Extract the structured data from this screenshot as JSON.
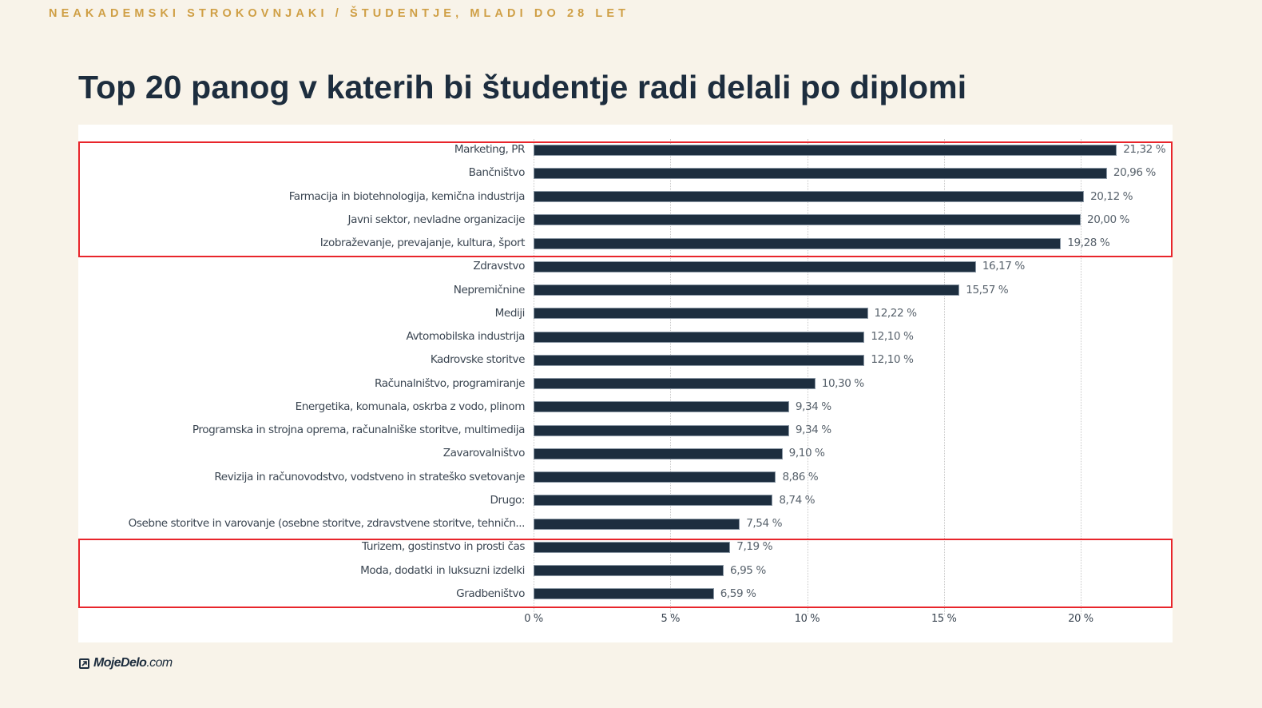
{
  "header": {
    "kicker": "NEAKADEMSKI STROKOVNJAKI / ŠTUDENTJE, MLADI DO 28 LET",
    "title": "Top 20 panog v katerih bi študentje radi delali po diplomi"
  },
  "footer": {
    "logo_bold": "MojeDelo",
    "logo_suffix": ".com",
    "logo_icon": "arrow-up-right-box-icon"
  },
  "colors": {
    "background": "#f8f3e9",
    "kicker": "#cf9f45",
    "title": "#1d2d3e",
    "bar": "#1d2e3f",
    "highlight_border": "#e8252b"
  },
  "chart_data": {
    "type": "bar",
    "orientation": "horizontal",
    "title": "Top 20 panog v katerih bi študentje radi delali po diplomi",
    "xlabel": "",
    "ylabel": "",
    "xlim": [
      0,
      23
    ],
    "x_ticks": [
      "0 %",
      "5 %",
      "10 %",
      "15 %",
      "20 %"
    ],
    "grid": true,
    "categories": [
      "Marketing, PR",
      "Bančništvo",
      "Farmacija in biotehnologija, kemična industrija",
      "Javni sektor, nevladne organizacije",
      "Izobraževanje, prevajanje, kultura, šport",
      "Zdravstvo",
      "Nepremičnine",
      "Mediji",
      "Avtomobilska industrija",
      "Kadrovske storitve",
      "Računalništvo, programiranje",
      "Energetika, komunala, oskrba z vodo, plinom",
      "Programska in strojna oprema, računalniške storitve, multimedija",
      "Zavarovalništvo",
      "Revizija in računovodstvo, vodstveno in strateško svetovanje",
      "Drugo:",
      "Osebne storitve in varovanje (osebne storitve, zdravstvene storitve, tehničn...",
      "Turizem, gostinstvo in prosti čas",
      "Moda, dodatki in luksuzni izdelki",
      "Gradbeništvo"
    ],
    "values": [
      21.32,
      20.96,
      20.12,
      20.0,
      19.28,
      16.17,
      15.57,
      12.22,
      12.1,
      12.1,
      10.3,
      9.34,
      9.34,
      9.1,
      8.86,
      8.74,
      7.54,
      7.19,
      6.95,
      6.59
    ],
    "value_labels": [
      "21,32 %",
      "20,96 %",
      "20,12 %",
      "20,00 %",
      "19,28 %",
      "16,17 %",
      "15,57 %",
      "12,22 %",
      "12,10 %",
      "12,10 %",
      "10,30 %",
      "9,34 %",
      "9,34 %",
      "9,10 %",
      "8,86 %",
      "8,74 %",
      "7,54 %",
      "7,19 %",
      "6,95 %",
      "6,59 %"
    ],
    "annotations": [
      {
        "type": "highlight-box",
        "color": "#e8252b",
        "rows": [
          0,
          4
        ],
        "meaning": "top 5"
      },
      {
        "type": "highlight-box",
        "color": "#e8252b",
        "rows": [
          17,
          19
        ],
        "meaning": "bottom 3"
      }
    ]
  }
}
